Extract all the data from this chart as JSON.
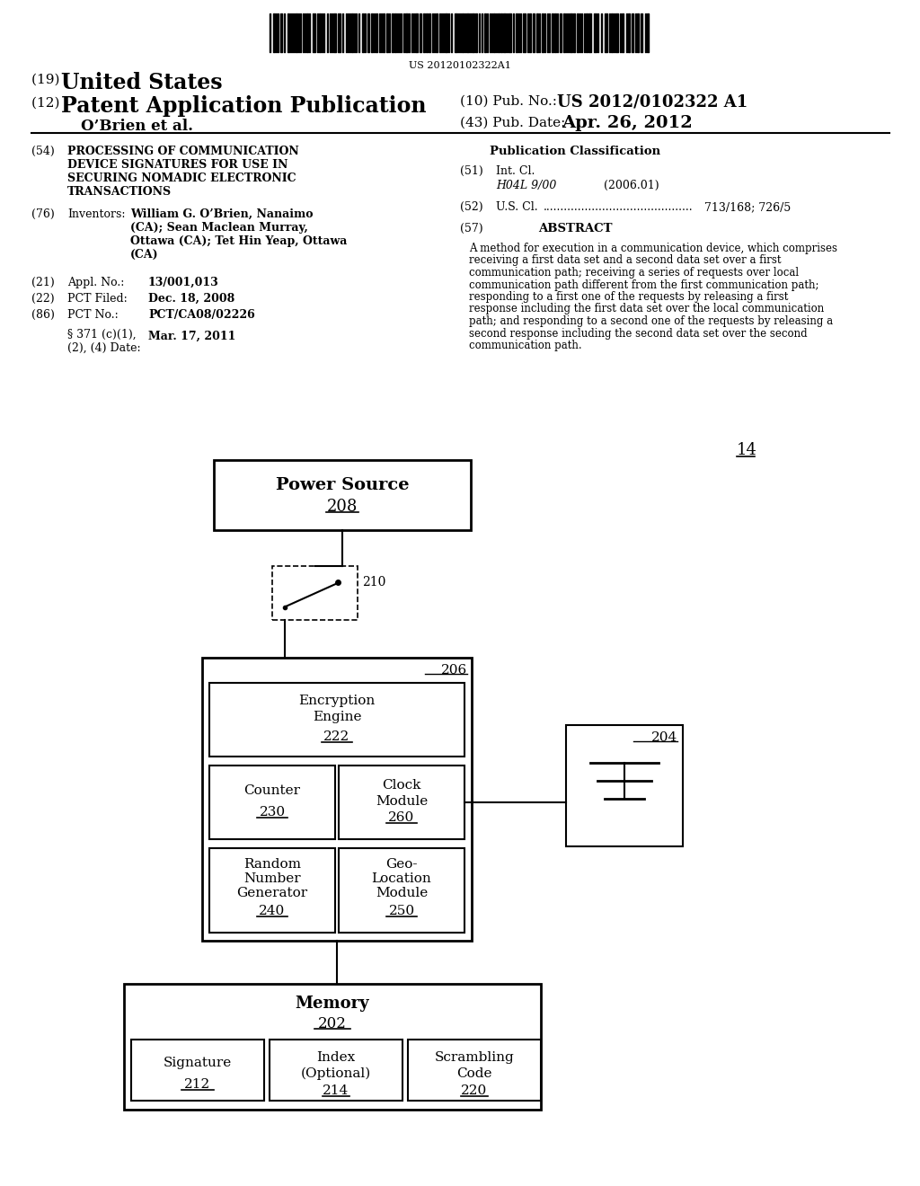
{
  "background_color": "#ffffff",
  "barcode_text": "US 20120102322A1",
  "pub_no_label": "(10) Pub. No.:",
  "pub_no_value": "US 2012/0102322 A1",
  "inventor_line": "O’Brien et al.",
  "pub_date_label": "(43) Pub. Date:",
  "pub_date_value": "Apr. 26, 2012",
  "section_54_label": "(54)",
  "section_54_text": "PROCESSING OF COMMUNICATION\nDEVICE SIGNATURES FOR USE IN\nSECURING NOMADIC ELECTRONIC\nTRANSACTIONS",
  "section_76_label": "(76)",
  "section_76_key": "Inventors:",
  "section_76_value": "William G. O’Brien, Nanaimo\n(CA); Sean Maclean Murray,\nOttawa (CA); Tet Hin Yeap, Ottawa\n(CA)",
  "section_21_label": "(21)",
  "section_21_key": "Appl. No.:",
  "section_21_value": "13/001,013",
  "section_22_label": "(22)",
  "section_22_key": "PCT Filed:",
  "section_22_value": "Dec. 18, 2008",
  "section_86_label": "(86)",
  "section_86_key": "PCT No.:",
  "section_86_value": "PCT/CA08/02226",
  "section_371_text": "§ 371 (c)(1),\n(2), (4) Date:",
  "section_371_value": "Mar. 17, 2011",
  "pub_class_title": "Publication Classification",
  "section_51_label": "(51)",
  "section_51_key": "Int. Cl.",
  "section_51_class": "H04L 9/00",
  "section_51_year": "(2006.01)",
  "section_52_label": "(52)",
  "section_52_key": "U.S. Cl.",
  "section_52_dots": "...........................................",
  "section_52_value": "713/168; 726/5",
  "section_57_label": "(57)",
  "section_57_key": "ABSTRACT",
  "abstract_text": "A method for execution in a communication device, which comprises receiving a first data set and a second data set over a first communication path; receiving a series of requests over local communication path different from the first communication path; responding to a first one of the requests by releasing a first response including the first data set over the local communication path; and responding to a second one of the requests by releasing a second response including the second data set over the second communication path.",
  "diagram_label": "14",
  "box_power_label": "Power Source",
  "box_power_num": "208",
  "box_switch_num": "210",
  "box_206_num": "206",
  "box_enc_label1": "Encryption",
  "box_enc_label2": "Engine",
  "box_enc_num": "222",
  "box_counter_label": "Counter",
  "box_counter_num": "230",
  "box_clock_label1": "Clock",
  "box_clock_label2": "Module",
  "box_clock_num": "260",
  "box_rng_label1": "Random",
  "box_rng_label2": "Number",
  "box_rng_label3": "Generator",
  "box_rng_num": "240",
  "box_geo_label1": "Geo-",
  "box_geo_label2": "Location",
  "box_geo_label3": "Module",
  "box_geo_num": "250",
  "box_204_num": "204",
  "box_memory_label": "Memory",
  "box_memory_num": "202",
  "box_sig_label": "Signature",
  "box_sig_num": "212",
  "box_index_label1": "Index",
  "box_index_label2": "(Optional)",
  "box_index_num": "214",
  "box_scram_label1": "Scrambling",
  "box_scram_label2": "Code",
  "box_scram_num": "220"
}
